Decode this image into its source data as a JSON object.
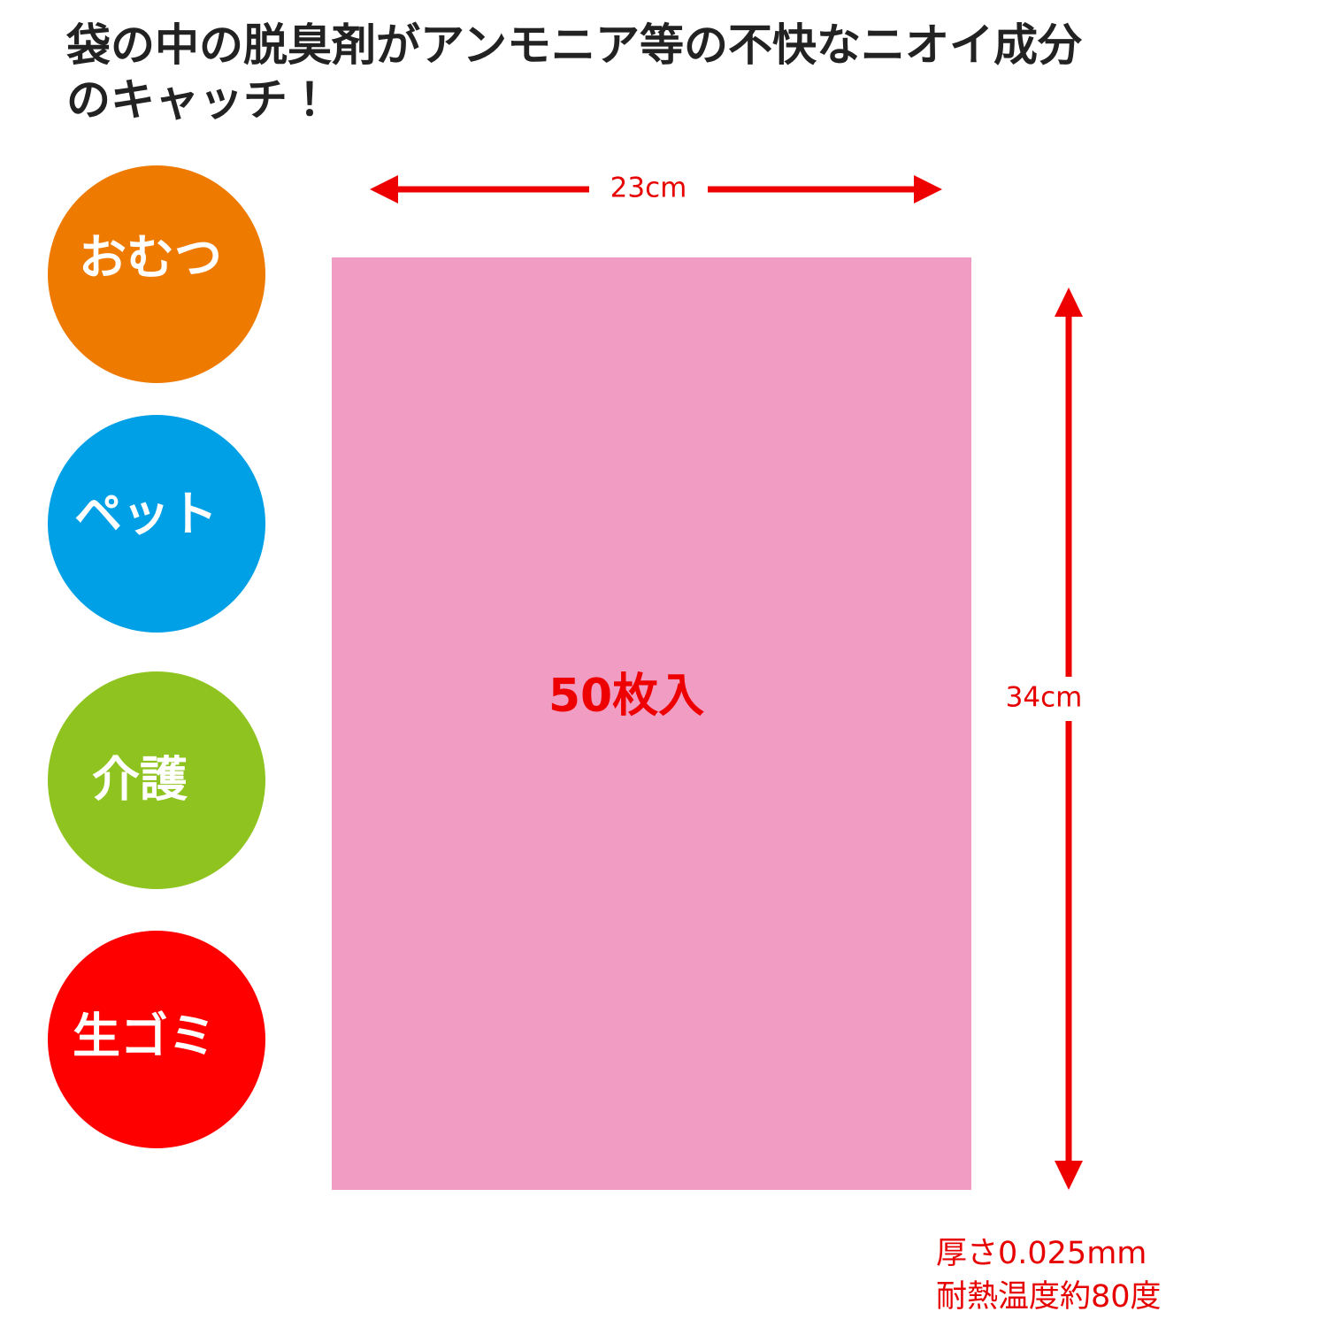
{
  "header": {
    "title_lines": [
      "袋の中の脱臭剤がアンモニア等の不快なニオイ成分",
      "のキャッチ！"
    ]
  },
  "uses": [
    "おむつ",
    "ペット",
    "介護",
    "生ゴミ"
  ],
  "bag": {
    "count_label": "50枚入",
    "width_label": "23cm",
    "height_label": "34cm"
  },
  "specs": [
    "厚さ0.025mm",
    "耐熱温度約80度"
  ]
}
